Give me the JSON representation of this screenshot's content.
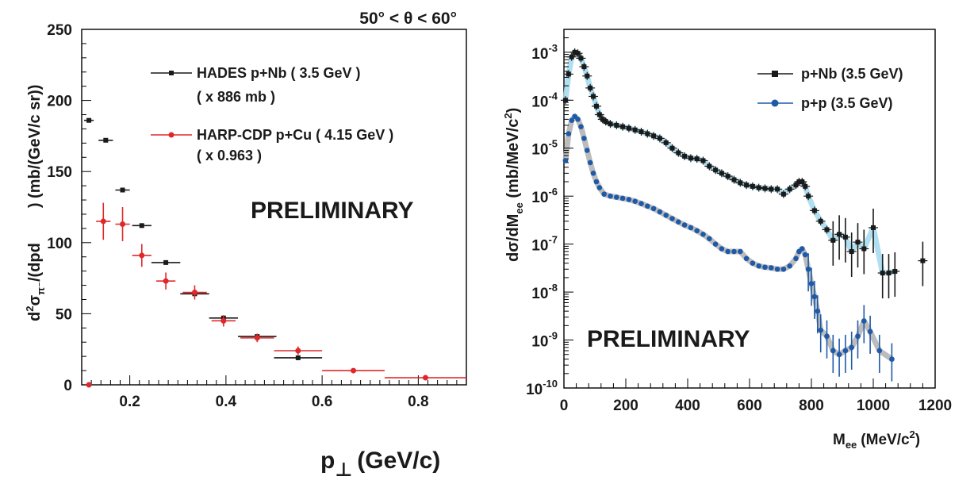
{
  "chart_data": [
    {
      "type": "scatter",
      "title": "50° < θ < 60°",
      "annotation": "PRELIMINARY",
      "xlabel": "(GeV/c)",
      "xlabel_symbol": "p",
      "xlabel_subscript": "⊥",
      "ylabel": "d²σπ⁻/(dpdΩ) (mb/(GeV/c sr))",
      "ylabel_parts": {
        "a": "d",
        "sup": "2",
        "b": "σ",
        "sub": "π⁻",
        "c": "/(dpd",
        "d": ") (mb/(GeV/c sr))"
      },
      "xlim": [
        0.1,
        0.9
      ],
      "ylim": [
        0,
        250
      ],
      "xticks": [
        "0.2",
        "0.4",
        "0.6",
        "0.8"
      ],
      "xtick_values": [
        0.2,
        0.4,
        0.6,
        0.8
      ],
      "yticks": [
        "0",
        "50",
        "100",
        "150",
        "200",
        "250"
      ],
      "ytick_values": [
        0,
        50,
        100,
        150,
        200,
        250
      ],
      "legend_position": "top-right",
      "series": [
        {
          "name": "HADES p+Nb ( 3.5 GeV )",
          "name_line2": "( x 886 mb )",
          "color": "#1a1a1a",
          "points": [
            {
              "x": 0.115,
              "y": 186,
              "xerr": 0.01,
              "yerr": 0
            },
            {
              "x": 0.15,
              "y": 172,
              "xerr": 0.015,
              "yerr": 0
            },
            {
              "x": 0.185,
              "y": 137,
              "xerr": 0.015,
              "yerr": 0
            },
            {
              "x": 0.225,
              "y": 112,
              "xerr": 0.02,
              "yerr": 0
            },
            {
              "x": 0.275,
              "y": 86,
              "xerr": 0.03,
              "yerr": 0
            },
            {
              "x": 0.335,
              "y": 64,
              "xerr": 0.03,
              "yerr": 0
            },
            {
              "x": 0.395,
              "y": 47,
              "xerr": 0.03,
              "yerr": 0
            },
            {
              "x": 0.465,
              "y": 34,
              "xerr": 0.04,
              "yerr": 0
            },
            {
              "x": 0.55,
              "y": 19,
              "xerr": 0.05,
              "yerr": 0
            }
          ]
        },
        {
          "name": "HARP-CDP p+Cu ( 4.15 GeV )",
          "name_line2": "( x 0.963 )",
          "color": "#e0282a",
          "points": [
            {
              "x": 0.115,
              "y": 0,
              "xerr": 0.0,
              "yerr": 0
            },
            {
              "x": 0.145,
              "y": 115,
              "xerr": 0.015,
              "yerr": 13
            },
            {
              "x": 0.185,
              "y": 113,
              "xerr": 0.015,
              "yerr": 12
            },
            {
              "x": 0.225,
              "y": 91,
              "xerr": 0.02,
              "yerr": 8
            },
            {
              "x": 0.275,
              "y": 73,
              "xerr": 0.02,
              "yerr": 6
            },
            {
              "x": 0.335,
              "y": 65,
              "xerr": 0.025,
              "yerr": 5
            },
            {
              "x": 0.395,
              "y": 45,
              "xerr": 0.025,
              "yerr": 4
            },
            {
              "x": 0.465,
              "y": 33,
              "xerr": 0.035,
              "yerr": 3
            },
            {
              "x": 0.55,
              "y": 24,
              "xerr": 0.05,
              "yerr": 3
            },
            {
              "x": 0.665,
              "y": 10,
              "xerr": 0.065,
              "yerr": 1
            },
            {
              "x": 0.815,
              "y": 5,
              "xerr": 0.085,
              "yerr": 1
            }
          ]
        }
      ]
    },
    {
      "type": "scatter",
      "annotation": "PRELIMINARY",
      "xlabel": "M",
      "xlabel_subscript": "ee",
      "xlabel_unit": "(MeV/c",
      "xlabel_unit_sup": "2",
      "xlabel_unit_end": ")",
      "ylabel": "dσ/dMee (mb/MeV/c²)",
      "ylabel_parts": {
        "a": "dσ/dM",
        "sub": "ee",
        "b": " (mb/MeV/c",
        "sup": "2",
        "c": ")"
      },
      "xlim": [
        0,
        1200
      ],
      "ylim": [
        1e-10,
        0.003
      ],
      "yscale": "log",
      "xticks": [
        "0",
        "200",
        "400",
        "600",
        "800",
        "1000",
        "1200"
      ],
      "xtick_values": [
        0,
        200,
        400,
        600,
        800,
        1000,
        1200
      ],
      "ytick_exponents": [
        "-3",
        "-4",
        "-5",
        "-6",
        "-7",
        "-8",
        "-9",
        "-10"
      ],
      "ytick_base": "10",
      "ytick_values": [
        0.001,
        0.0001,
        1e-05,
        1e-06,
        1e-07,
        1e-08,
        1e-09,
        1e-10
      ],
      "legend_position": "top-right",
      "series": [
        {
          "name": "p+Nb (3.5 GeV)",
          "color": "#1a1a1a",
          "band_color": "#a6dcee",
          "points": [
            [
              5,
              0.0001
            ],
            [
              15,
              0.00035
            ],
            [
              25,
              0.0008
            ],
            [
              35,
              0.001
            ],
            [
              45,
              0.00095
            ],
            [
              55,
              0.00075
            ],
            [
              65,
              0.0005
            ],
            [
              75,
              0.00032
            ],
            [
              85,
              0.00018
            ],
            [
              95,
              0.00012
            ],
            [
              105,
              7.5e-05
            ],
            [
              115,
              5e-05
            ],
            [
              125,
              4e-05
            ],
            [
              135,
              3.6e-05
            ],
            [
              150,
              3.2e-05
            ],
            [
              170,
              3e-05
            ],
            [
              190,
              2.8e-05
            ],
            [
              210,
              2.6e-05
            ],
            [
              230,
              2.4e-05
            ],
            [
              250,
              2.2e-05
            ],
            [
              270,
              2e-05
            ],
            [
              290,
              1.8e-05
            ],
            [
              310,
              1.6e-05
            ],
            [
              330,
              1.3e-05
            ],
            [
              350,
              1e-05
            ],
            [
              370,
              8e-06
            ],
            [
              390,
              6.8e-06
            ],
            [
              410,
              6.2e-06
            ],
            [
              430,
              6e-06
            ],
            [
              450,
              5.5e-06
            ],
            [
              470,
              4.2e-06
            ],
            [
              490,
              3.5e-06
            ],
            [
              510,
              3e-06
            ],
            [
              530,
              2.6e-06
            ],
            [
              550,
              2.2e-06
            ],
            [
              570,
              1.9e-06
            ],
            [
              590,
              1.7e-06
            ],
            [
              610,
              1.6e-06
            ],
            [
              630,
              1.5e-06
            ],
            [
              650,
              1.45e-06
            ],
            [
              670,
              1.4e-06
            ],
            [
              690,
              1.4e-06
            ],
            [
              710,
              1.1e-06
            ],
            [
              730,
              1.4e-06
            ],
            [
              750,
              1.7e-06
            ],
            [
              760,
              2e-06
            ],
            [
              770,
              2e-06
            ],
            [
              780,
              1.6e-06
            ],
            [
              790,
              1e-06
            ],
            [
              810,
              5e-07
            ],
            [
              830,
              3e-07
            ],
            [
              850,
              2e-07
            ],
            [
              870,
              1.2e-07
            ],
            [
              890,
              1.6e-07
            ],
            [
              910,
              1.4e-07
            ],
            [
              930,
              7e-08
            ],
            [
              950,
              1.1e-07
            ],
            [
              970,
              8e-08
            ],
            [
              1000,
              2.2e-07
            ],
            [
              1030,
              2.5e-08
            ],
            [
              1050,
              2.5e-08
            ],
            [
              1070,
              2.7e-08
            ],
            [
              1160,
              4.5e-08
            ]
          ]
        },
        {
          "name": "p+p (3.5 GeV)",
          "color": "#1f5aa8",
          "band_color": "#b5b5b5",
          "points": [
            [
              5,
              5.5e-06
            ],
            [
              15,
              2e-05
            ],
            [
              25,
              3.8e-05
            ],
            [
              35,
              4.6e-05
            ],
            [
              45,
              4e-05
            ],
            [
              55,
              2.8e-05
            ],
            [
              65,
              1.6e-05
            ],
            [
              75,
              9e-06
            ],
            [
              85,
              5e-06
            ],
            [
              95,
              3e-06
            ],
            [
              105,
              2e-06
            ],
            [
              115,
              1.5e-06
            ],
            [
              130,
              1.1e-06
            ],
            [
              150,
              1e-06
            ],
            [
              170,
              9.5e-07
            ],
            [
              190,
              9e-07
            ],
            [
              210,
              8.5e-07
            ],
            [
              230,
              7.8e-07
            ],
            [
              250,
              7e-07
            ],
            [
              270,
              6.2e-07
            ],
            [
              290,
              5.5e-07
            ],
            [
              310,
              4.7e-07
            ],
            [
              330,
              4e-07
            ],
            [
              350,
              3.4e-07
            ],
            [
              370,
              2.9e-07
            ],
            [
              390,
              2.5e-07
            ],
            [
              410,
              2.2e-07
            ],
            [
              430,
              1.9e-07
            ],
            [
              450,
              1.6e-07
            ],
            [
              470,
              1.3e-07
            ],
            [
              490,
              1e-07
            ],
            [
              510,
              8e-08
            ],
            [
              530,
              7e-08
            ],
            [
              550,
              7e-08
            ],
            [
              570,
              7e-08
            ],
            [
              590,
              5e-08
            ],
            [
              610,
              4e-08
            ],
            [
              630,
              3.5e-08
            ],
            [
              650,
              3.3e-08
            ],
            [
              670,
              3.2e-08
            ],
            [
              690,
              3e-08
            ],
            [
              710,
              3e-08
            ],
            [
              730,
              3.5e-08
            ],
            [
              750,
              5e-08
            ],
            [
              760,
              7e-08
            ],
            [
              770,
              8e-08
            ],
            [
              780,
              6e-08
            ],
            [
              790,
              3e-08
            ],
            [
              800,
              1.5e-08
            ],
            [
              810,
              8e-09
            ],
            [
              820,
              4e-09
            ],
            [
              830,
              1.6e-09
            ],
            [
              850,
              1.2e-09
            ],
            [
              870,
              6e-10
            ],
            [
              890,
              5e-10
            ],
            [
              910,
              6e-10
            ],
            [
              930,
              7e-10
            ],
            [
              950,
              1.2e-09
            ],
            [
              970,
              2.5e-09
            ],
            [
              990,
              1.5e-09
            ],
            [
              1020,
              6e-10
            ],
            [
              1060,
              4e-10
            ]
          ]
        }
      ]
    }
  ]
}
